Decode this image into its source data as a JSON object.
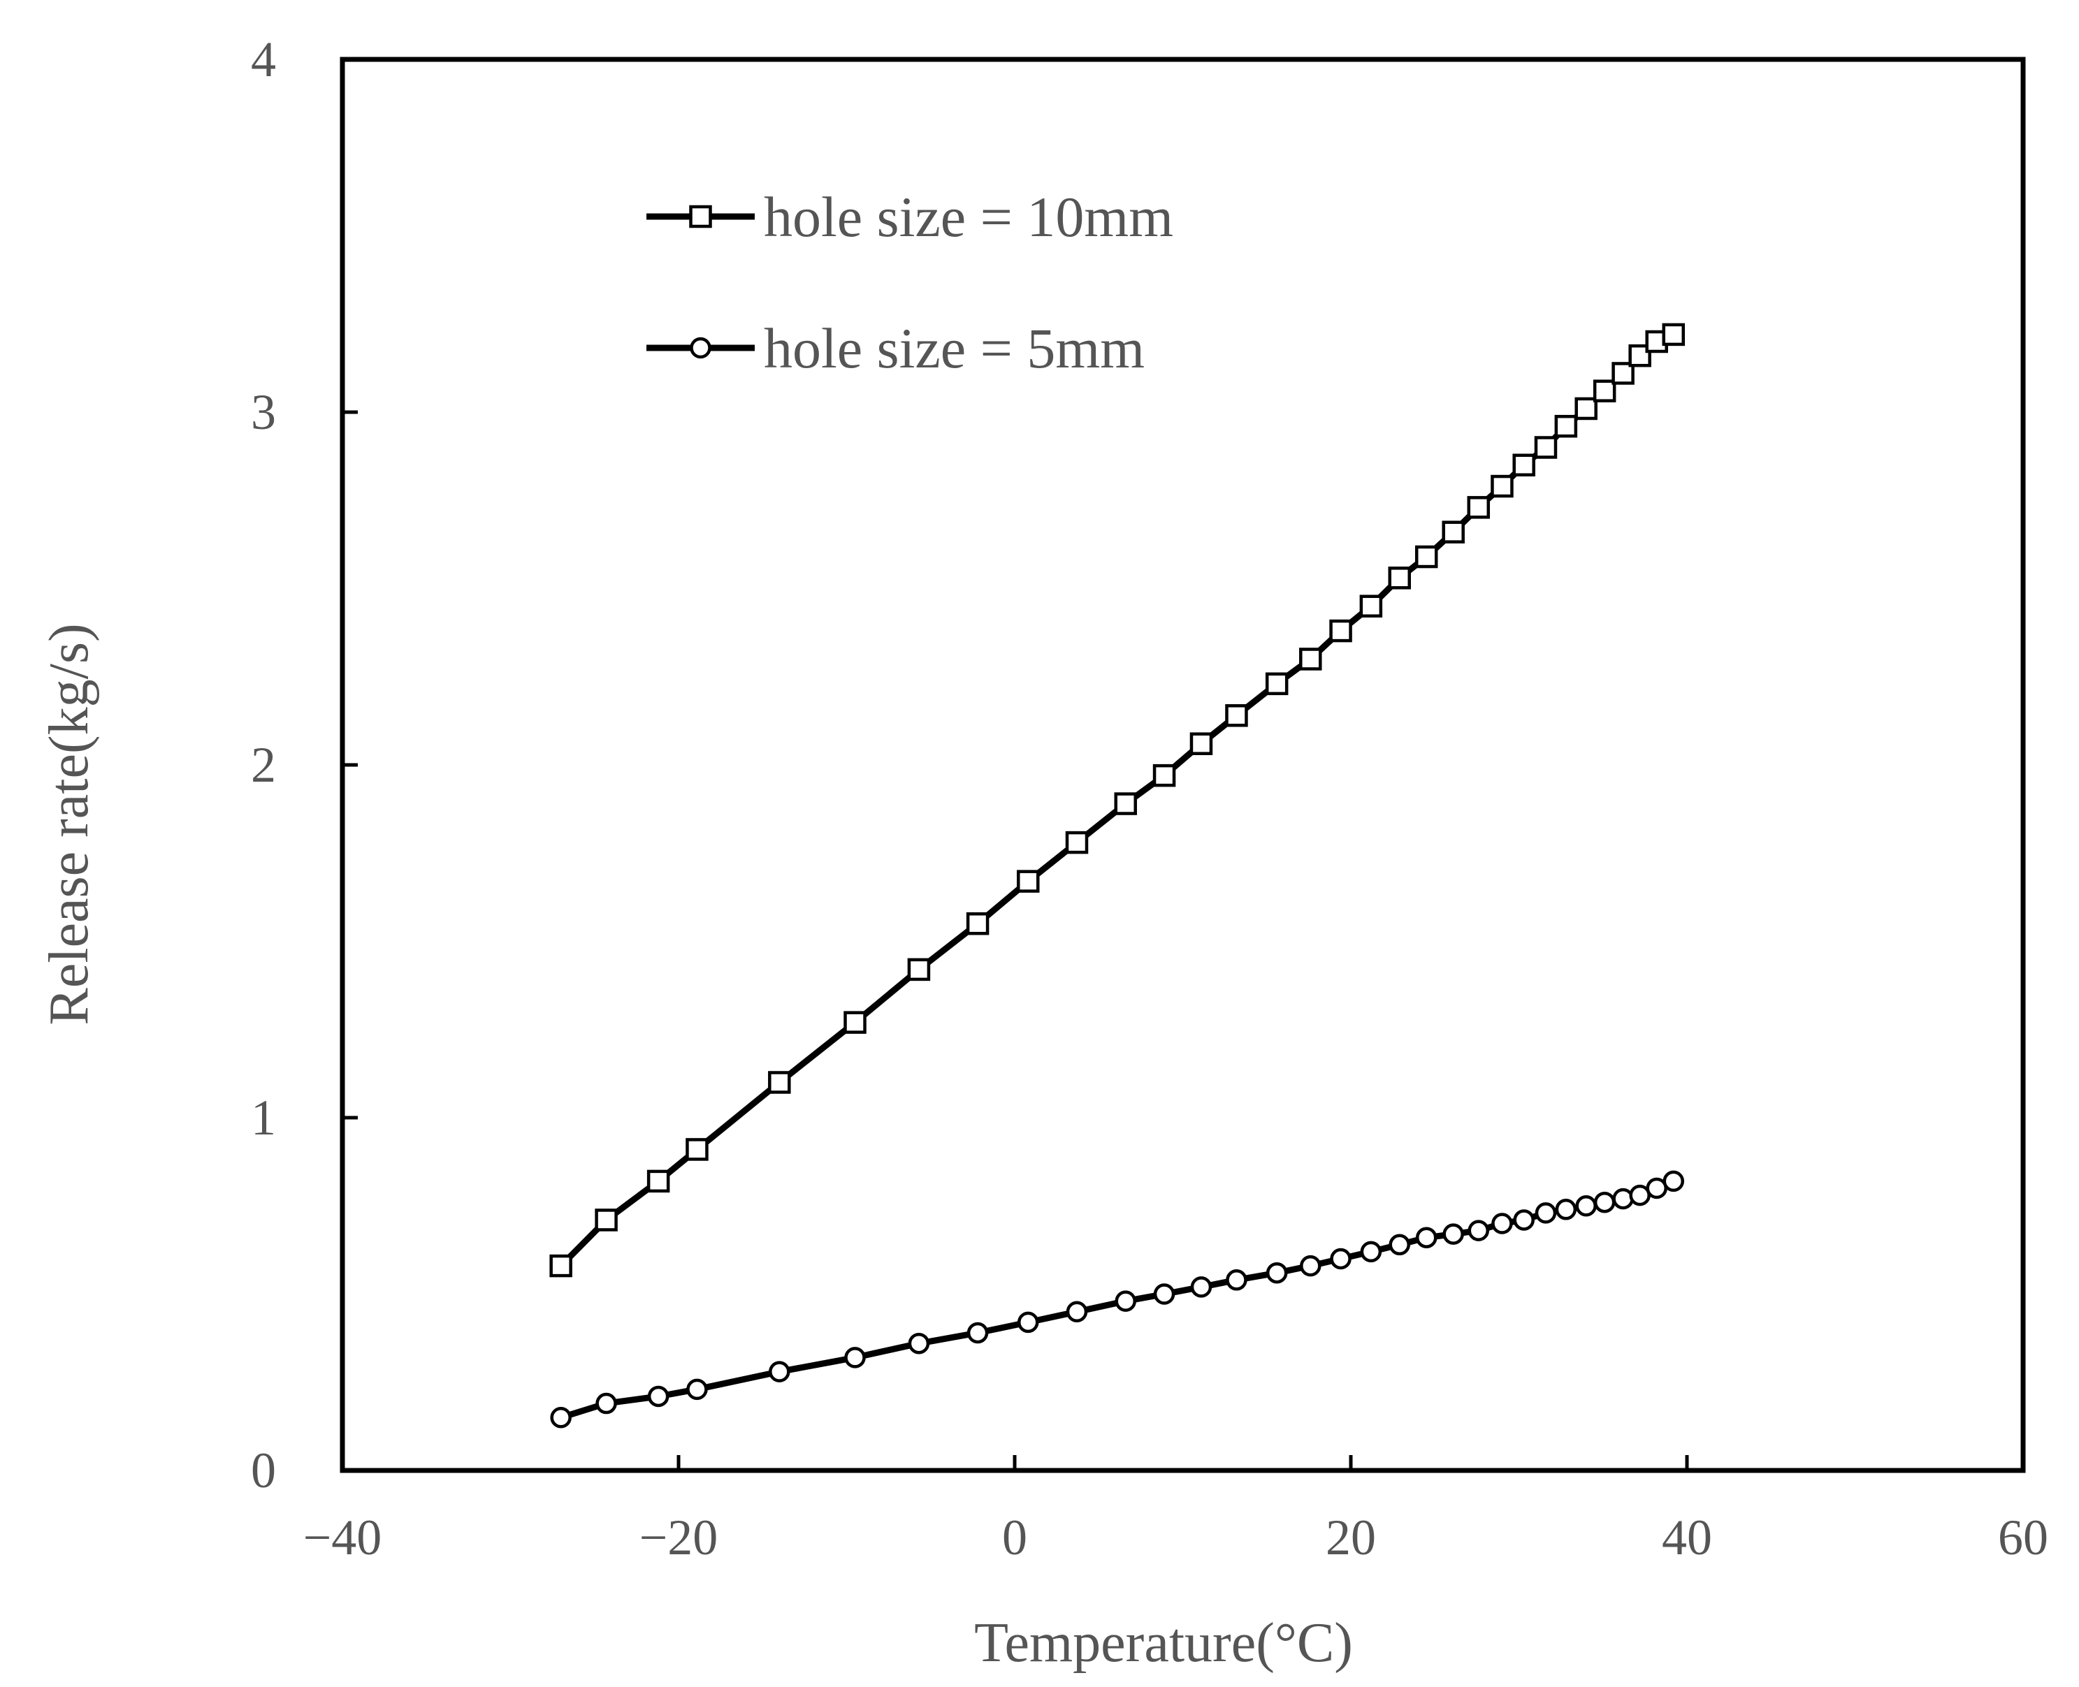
{
  "chart_data": {
    "type": "line",
    "title": "",
    "xlabel": "Temperature(°C)",
    "ylabel": "Release rate(kg/s)",
    "xlim": [
      -40,
      60
    ],
    "ylim": [
      0,
      4
    ],
    "xticks": [
      -40,
      -20,
      0,
      20,
      40,
      60
    ],
    "yticks": [
      0,
      1,
      2,
      3,
      4
    ],
    "xtick_labels": [
      "−40",
      "−20",
      "0",
      "20",
      "40",
      "60"
    ],
    "ytick_labels": [
      "0",
      "1",
      "2",
      "3",
      "4"
    ],
    "grid": false,
    "legend_position": "top-left",
    "series": [
      {
        "name": "hole size = 10mm",
        "marker": "square",
        "x": [
          -27.0,
          -24.3,
          -21.2,
          -18.9,
          -14.0,
          -9.5,
          -5.7,
          -2.2,
          0.8,
          3.7,
          6.6,
          8.9,
          11.1,
          13.2,
          15.6,
          17.6,
          19.4,
          21.2,
          22.9,
          24.5,
          26.1,
          27.6,
          29.0,
          30.3,
          31.6,
          32.8,
          34.0,
          35.1,
          36.2,
          37.2,
          38.2,
          39.2
        ],
        "y": [
          0.58,
          0.71,
          0.82,
          0.91,
          1.1,
          1.27,
          1.42,
          1.55,
          1.67,
          1.78,
          1.89,
          1.97,
          2.06,
          2.14,
          2.23,
          2.3,
          2.38,
          2.45,
          2.53,
          2.59,
          2.66,
          2.73,
          2.79,
          2.85,
          2.9,
          2.96,
          3.01,
          3.06,
          3.11,
          3.16,
          3.2,
          3.22
        ]
      },
      {
        "name": "hole size = 5mm",
        "marker": "circle",
        "x": [
          -27.0,
          -24.3,
          -21.2,
          -18.9,
          -14.0,
          -9.5,
          -5.7,
          -2.2,
          0.8,
          3.7,
          6.6,
          8.9,
          11.1,
          13.2,
          15.6,
          17.6,
          19.4,
          21.2,
          22.9,
          24.5,
          26.1,
          27.6,
          29.0,
          30.3,
          31.6,
          32.8,
          34.0,
          35.1,
          36.2,
          37.2,
          38.2,
          39.2
        ],
        "y": [
          0.15,
          0.19,
          0.21,
          0.23,
          0.28,
          0.32,
          0.36,
          0.39,
          0.42,
          0.45,
          0.48,
          0.5,
          0.52,
          0.54,
          0.56,
          0.58,
          0.6,
          0.62,
          0.64,
          0.66,
          0.67,
          0.68,
          0.7,
          0.71,
          0.73,
          0.74,
          0.75,
          0.76,
          0.77,
          0.78,
          0.8,
          0.82
        ]
      }
    ]
  }
}
